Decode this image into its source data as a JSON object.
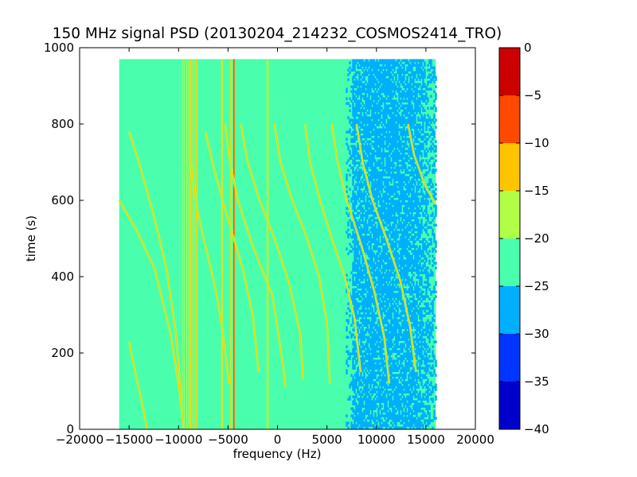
{
  "chart_data": {
    "type": "heatmap",
    "title": "150 MHz signal PSD (20130204_214232_COSMOS2414_TRO)",
    "xlabel": "frequency (Hz)",
    "ylabel": "time (s)",
    "xlim": [
      -20000,
      20000
    ],
    "ylim": [
      0,
      1000
    ],
    "x_ticks": [
      -20000,
      -15000,
      -10000,
      -5000,
      0,
      5000,
      10000,
      15000,
      20000
    ],
    "y_ticks": [
      0,
      200,
      400,
      600,
      800,
      1000
    ],
    "data_extent": {
      "x": [
        -16000,
        16000
      ],
      "y": [
        0,
        970
      ]
    },
    "grid": false,
    "colormap": "jet",
    "colorbar": {
      "levels": [
        -40,
        -35,
        -30,
        -25,
        -20,
        -15,
        -10,
        -5,
        0
      ],
      "ticks": [
        0,
        -5,
        -10,
        -15,
        -20,
        -25,
        -30,
        -35,
        -40
      ],
      "colors": [
        "#0000cd",
        "#0034ff",
        "#00b0ff",
        "#49ffad",
        "#b0ff46",
        "#ffc400",
        "#ff4800",
        "#cd0000"
      ]
    },
    "background_level_range": [
      -25,
      -20
    ],
    "noise_band_hz": [
      7500,
      14500
    ],
    "vertical_lines_hz": [
      -9500,
      -9100,
      -8800,
      -8500,
      -8200,
      -5600,
      -4700,
      -4400,
      -1000
    ],
    "tracks": [
      {
        "points": [
          [
            -16000,
            600
          ],
          [
            -14200,
            520
          ],
          [
            -12400,
            420
          ],
          [
            -10800,
            250
          ],
          [
            -9900,
            100
          ],
          [
            -9500,
            0
          ]
        ]
      },
      {
        "points": [
          [
            -15000,
            780
          ],
          [
            -14000,
            700
          ],
          [
            -12500,
            560
          ],
          [
            -11200,
            420
          ],
          [
            -10300,
            260
          ],
          [
            -9700,
            80
          ]
        ]
      },
      {
        "points": [
          [
            -15000,
            230
          ],
          [
            -14300,
            140
          ],
          [
            -13600,
            60
          ],
          [
            -13200,
            0
          ]
        ]
      },
      {
        "points": [
          [
            -8800,
            700
          ],
          [
            -8000,
            560
          ],
          [
            -7000,
            450
          ],
          [
            -6200,
            360
          ],
          [
            -5500,
            250
          ],
          [
            -4900,
            120
          ]
        ]
      },
      {
        "points": [
          [
            -7300,
            780
          ],
          [
            -6400,
            680
          ],
          [
            -5100,
            560
          ],
          [
            -3500,
            420
          ],
          [
            -2500,
            300
          ],
          [
            -1900,
            150
          ]
        ]
      },
      {
        "points": [
          [
            -5300,
            800
          ],
          [
            -4800,
            700
          ],
          [
            -4000,
            600
          ],
          [
            -2500,
            480
          ],
          [
            -500,
            350
          ],
          [
            600,
            160
          ],
          [
            800,
            110
          ]
        ]
      },
      {
        "points": [
          [
            -3700,
            800
          ],
          [
            -3000,
            700
          ],
          [
            -1800,
            600
          ],
          [
            -300,
            500
          ],
          [
            1200,
            380
          ],
          [
            2300,
            250
          ],
          [
            2600,
            130
          ]
        ]
      },
      {
        "points": [
          [
            -300,
            800
          ],
          [
            300,
            700
          ],
          [
            1500,
            600
          ],
          [
            3000,
            500
          ],
          [
            4200,
            400
          ],
          [
            5000,
            280
          ],
          [
            5300,
            120
          ]
        ]
      },
      {
        "points": [
          [
            2800,
            800
          ],
          [
            3300,
            700
          ],
          [
            4300,
            600
          ],
          [
            5500,
            500
          ],
          [
            6800,
            400
          ],
          [
            7800,
            290
          ],
          [
            8400,
            150
          ]
        ]
      },
      {
        "points": [
          [
            5500,
            800
          ],
          [
            6000,
            710
          ],
          [
            7000,
            600
          ],
          [
            8500,
            480
          ],
          [
            9800,
            360
          ],
          [
            10800,
            240
          ],
          [
            11300,
            120
          ]
        ]
      },
      {
        "points": [
          [
            8000,
            800
          ],
          [
            8600,
            700
          ],
          [
            9600,
            600
          ],
          [
            11000,
            500
          ],
          [
            12400,
            390
          ],
          [
            13400,
            270
          ],
          [
            14000,
            150
          ]
        ]
      },
      {
        "points": [
          [
            13200,
            800
          ],
          [
            13800,
            720
          ],
          [
            14900,
            640
          ],
          [
            16000,
            590
          ]
        ]
      }
    ]
  }
}
